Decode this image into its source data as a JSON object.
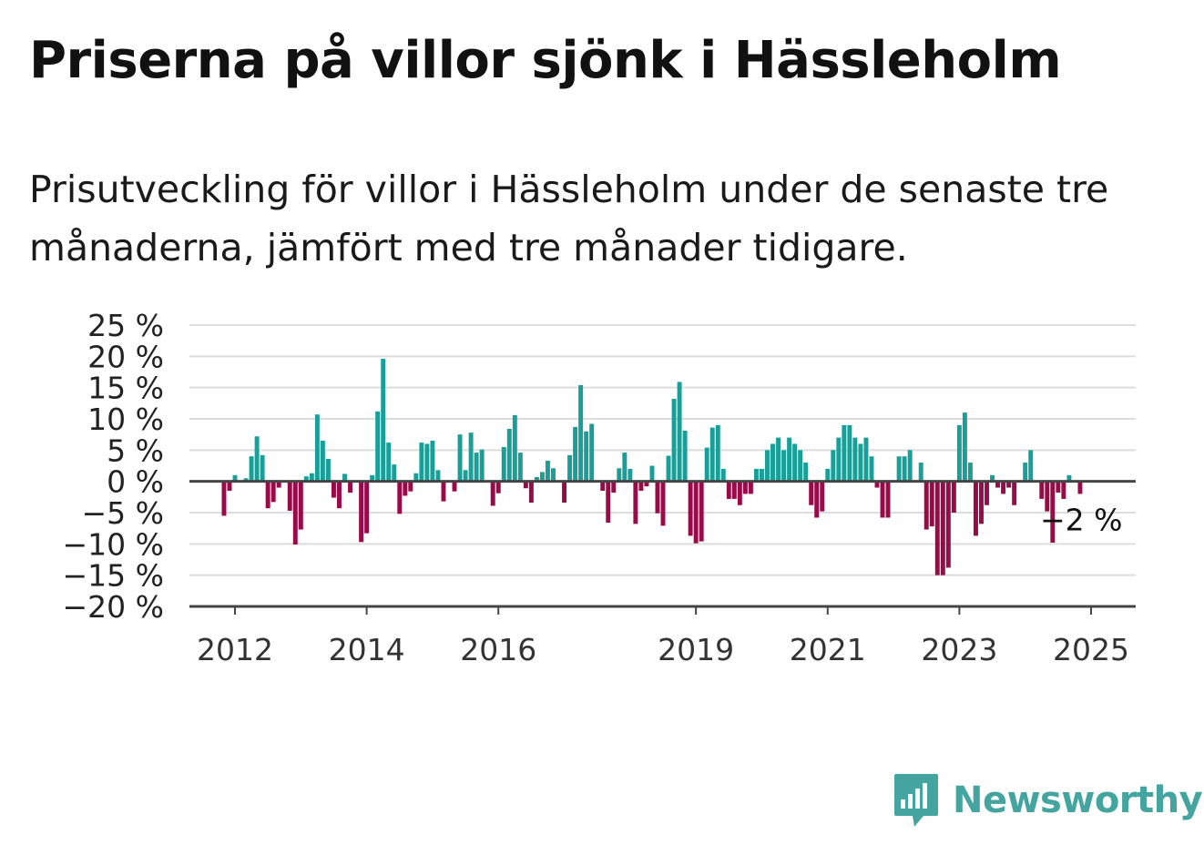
{
  "title": "Priserna på villor sjönk i Hässleholm",
  "subtitle": "Prisutveckling för villor i Hässleholm under de senaste tre månaderna, jämfört med tre månader tidigare.",
  "brand": {
    "name": "Newsworthy",
    "icon": "newsworthy-logo-icon",
    "color": "#44a4a0"
  },
  "colors": {
    "positive": "#1a9f98",
    "negative": "#980b48",
    "grid": "#dddddd",
    "axis": "#444444"
  },
  "chart_data": {
    "type": "bar",
    "title": "Priserna på villor sjönk i Hässleholm",
    "subtitle": "Prisutveckling för villor i Hässleholm under de senaste tre månaderna, jämfört med tre månader tidigare.",
    "xlabel": "",
    "ylabel": "",
    "ylim": [
      -20,
      25
    ],
    "yticks": [
      25,
      20,
      15,
      10,
      5,
      0,
      -5,
      -10,
      -15,
      -20
    ],
    "ytick_labels": [
      "25 %",
      "20 %",
      "15 %",
      "10 %",
      "5 %",
      "0 %",
      "−5 %",
      "−10 %",
      "−15 %",
      "−20 %"
    ],
    "xticks": [
      2012,
      2014,
      2016,
      2019,
      2021,
      2023,
      2025
    ],
    "xtick_labels": [
      "2012",
      "2014",
      "2016",
      "2019",
      "2021",
      "2023",
      "2025"
    ],
    "x_start": "2011-11",
    "frequency": "monthly",
    "grid": true,
    "values": [
      -5.5,
      -1.5,
      1,
      0,
      0.5,
      4,
      7.2,
      4.2,
      -4.3,
      -3.3,
      -1,
      0,
      -4.7,
      -10.1,
      -7.7,
      0.8,
      1.3,
      10.7,
      6.5,
      3.6,
      -2.6,
      -4.3,
      1.2,
      -1.8,
      0,
      -9.7,
      -8.3,
      1,
      11.2,
      19.6,
      6.2,
      2.7,
      -5.2,
      -2.3,
      -1.6,
      1.3,
      6.2,
      6,
      6.5,
      1.8,
      -3.2,
      0,
      -1.6,
      7.5,
      1.8,
      7.8,
      4.6,
      5.1,
      0,
      -3.9,
      -1.9,
      5.5,
      8.4,
      10.6,
      4.6,
      -1.1,
      -3.4,
      0.7,
      1.5,
      3.3,
      2.1,
      0,
      -3.4,
      4.2,
      8.7,
      15.4,
      8,
      9.2,
      0,
      -1.5,
      -6.6,
      -1.8,
      2.1,
      4.6,
      2,
      -6.8,
      -1.5,
      -0.8,
      2.5,
      -5.1,
      -7.1,
      4.1,
      13.2,
      15.9,
      8.1,
      -8.7,
      -9.9,
      -9.6,
      5.4,
      8.6,
      9,
      2,
      -2.8,
      -2.8,
      -3.8,
      -2,
      -2,
      2,
      2,
      5,
      6,
      7,
      5,
      7,
      6,
      5,
      3,
      -3.8,
      -5.8,
      -4.8,
      2,
      5,
      7,
      9,
      9,
      7,
      6,
      7,
      4,
      -1,
      -5.8,
      -5.8,
      0,
      4,
      4,
      5,
      0,
      3,
      -7.7,
      -7.2,
      -15,
      -15,
      -13.8,
      -5,
      9,
      11,
      3,
      -8.7,
      -6.8,
      -3.8,
      1,
      -1,
      -2,
      -1,
      -3.8,
      0,
      3,
      5,
      0,
      -2.8,
      -4.8,
      -9.8,
      -1.8,
      -2.8,
      1,
      0,
      -2
    ],
    "annotation": {
      "label": "−2 %",
      "value": -2
    }
  }
}
